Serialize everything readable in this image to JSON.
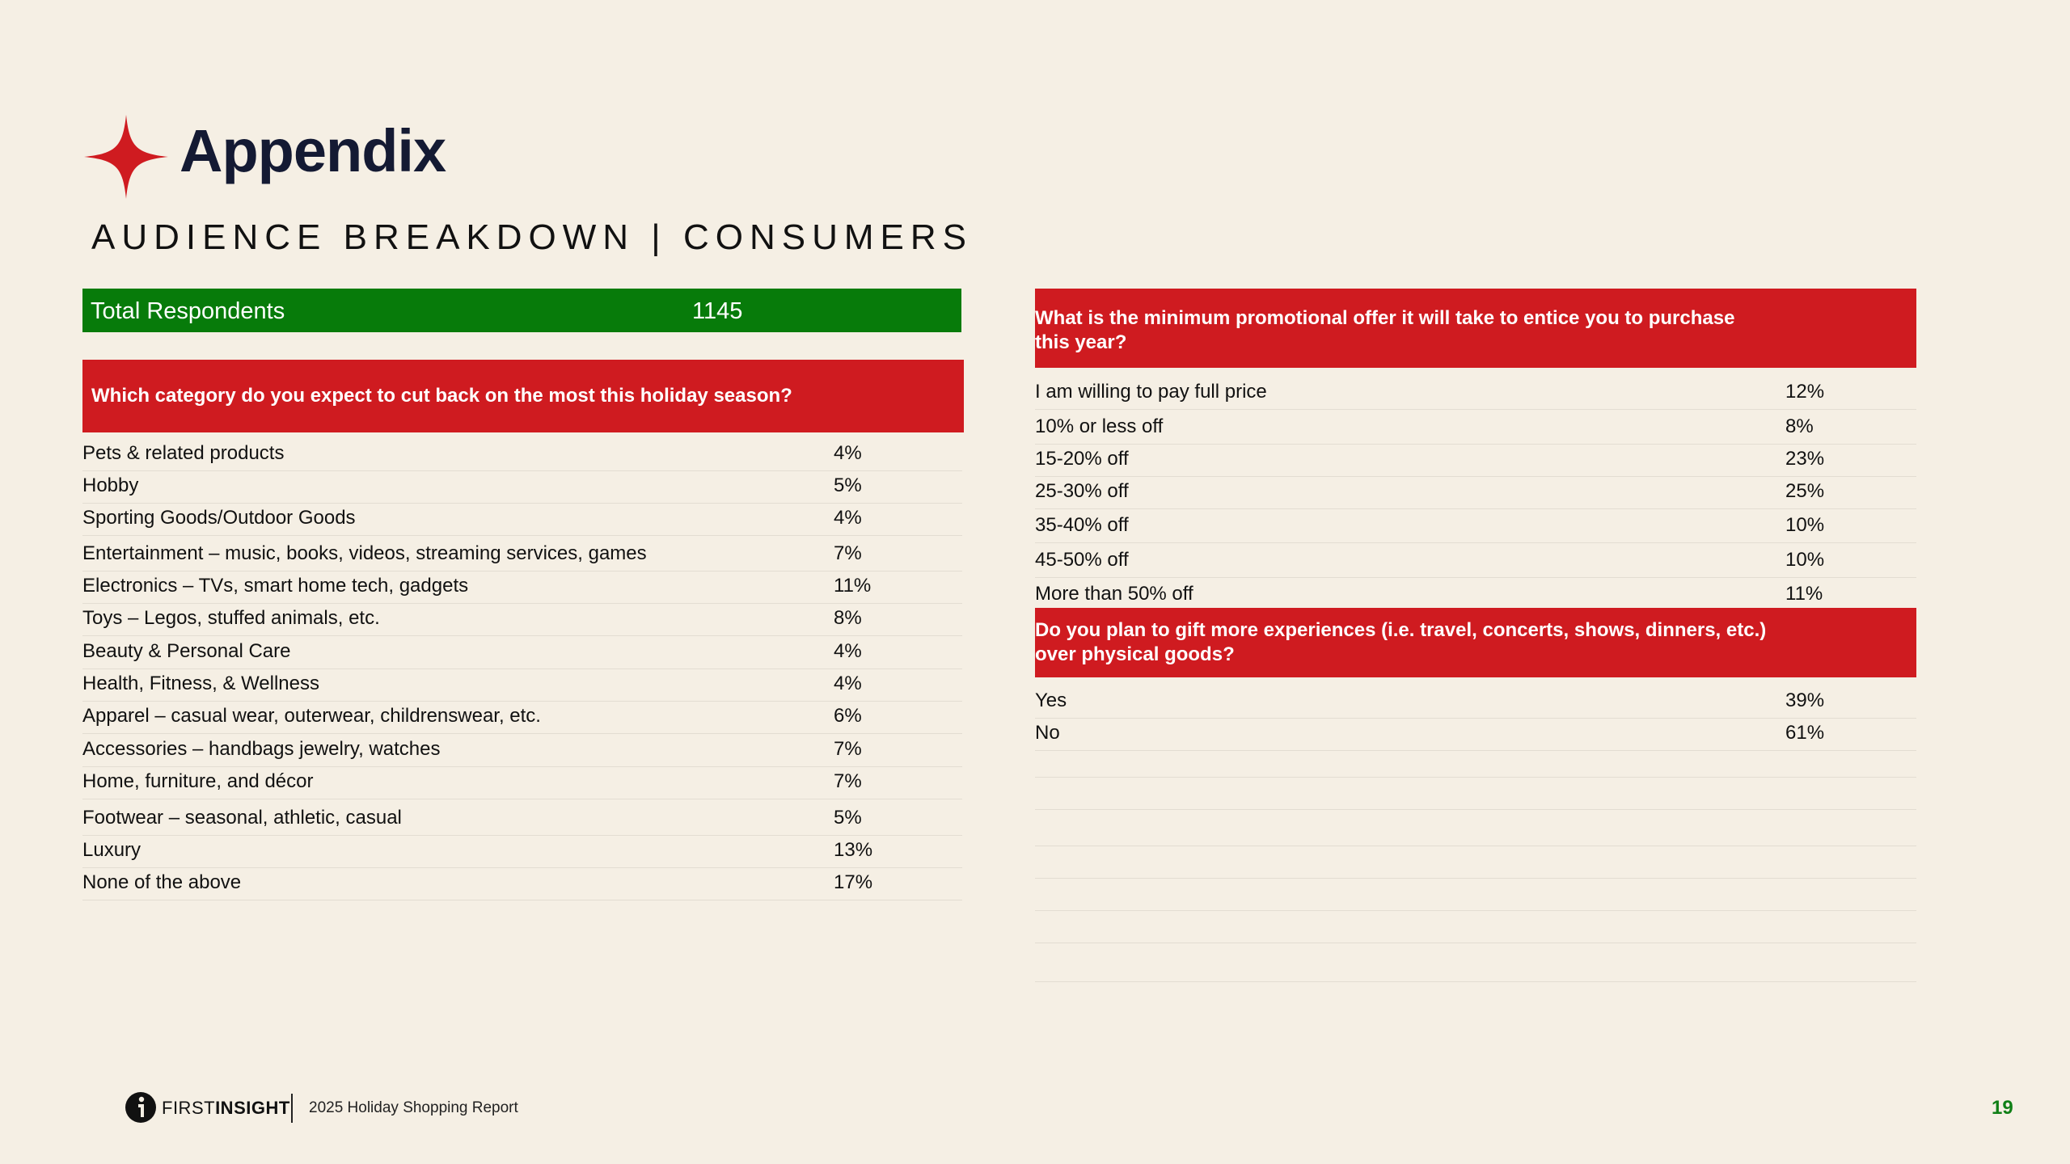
{
  "header": {
    "title": "Appendix",
    "subtitle": "AUDIENCE BREAKDOWN | CONSUMERS"
  },
  "total": {
    "label": "Total Respondents",
    "value": "1145"
  },
  "q1": {
    "question": "Which category do you expect to cut back on the most this holiday season?",
    "rows": [
      {
        "label": "Pets & related products",
        "value": "4%"
      },
      {
        "label": "Hobby",
        "value": "5%"
      },
      {
        "label": "Sporting Goods/Outdoor Goods",
        "value": "4%"
      },
      {
        "label": "Entertainment – music, books, videos, streaming services, games",
        "value": "7%"
      },
      {
        "label": "Electronics – TVs, smart home tech, gadgets",
        "value": "11%"
      },
      {
        "label": "Toys – Legos, stuffed animals, etc.",
        "value": "8%"
      },
      {
        "label": "Beauty & Personal Care",
        "value": "4%"
      },
      {
        "label": "Health, Fitness, & Wellness",
        "value": "4%"
      },
      {
        "label": "Apparel – casual wear, outerwear, childrenswear, etc.",
        "value": "6%"
      },
      {
        "label": "Accessories – handbags jewelry, watches",
        "value": "7%"
      },
      {
        "label": "Home, furniture, and décor",
        "value": "7%"
      },
      {
        "label": "Footwear – seasonal, athletic, casual",
        "value": "5%"
      },
      {
        "label": "Luxury",
        "value": "13%"
      },
      {
        "label": "None of the above",
        "value": "17%"
      }
    ]
  },
  "q2": {
    "question": "What is the minimum promotional offer it will take to entice you to purchase this year?",
    "rows": [
      {
        "label": "I am willing to pay full price",
        "value": "12%"
      },
      {
        "label": "10% or less off",
        "value": "8%"
      },
      {
        "label": "15-20% off",
        "value": "23%"
      },
      {
        "label": "25-30% off",
        "value": "25%"
      },
      {
        "label": "35-40% off",
        "value": "10%"
      },
      {
        "label": "45-50% off",
        "value": "10%"
      },
      {
        "label": "More than 50% off",
        "value": "11%"
      }
    ]
  },
  "q3": {
    "question": "Do you plan to gift more experiences (i.e. travel, concerts, shows, dinners, etc.) over physical goods?",
    "rows": [
      {
        "label": "Yes",
        "value": "39%"
      },
      {
        "label": "No",
        "value": "61%"
      }
    ]
  },
  "footer": {
    "brand_light": "FIRST",
    "brand_bold": "INSIGHT",
    "report": "2025 Holiday Shopping Report",
    "page": "19"
  },
  "colors": {
    "accent_red": "#cf1b20",
    "accent_green": "#077b0a",
    "navy": "#141a33"
  }
}
